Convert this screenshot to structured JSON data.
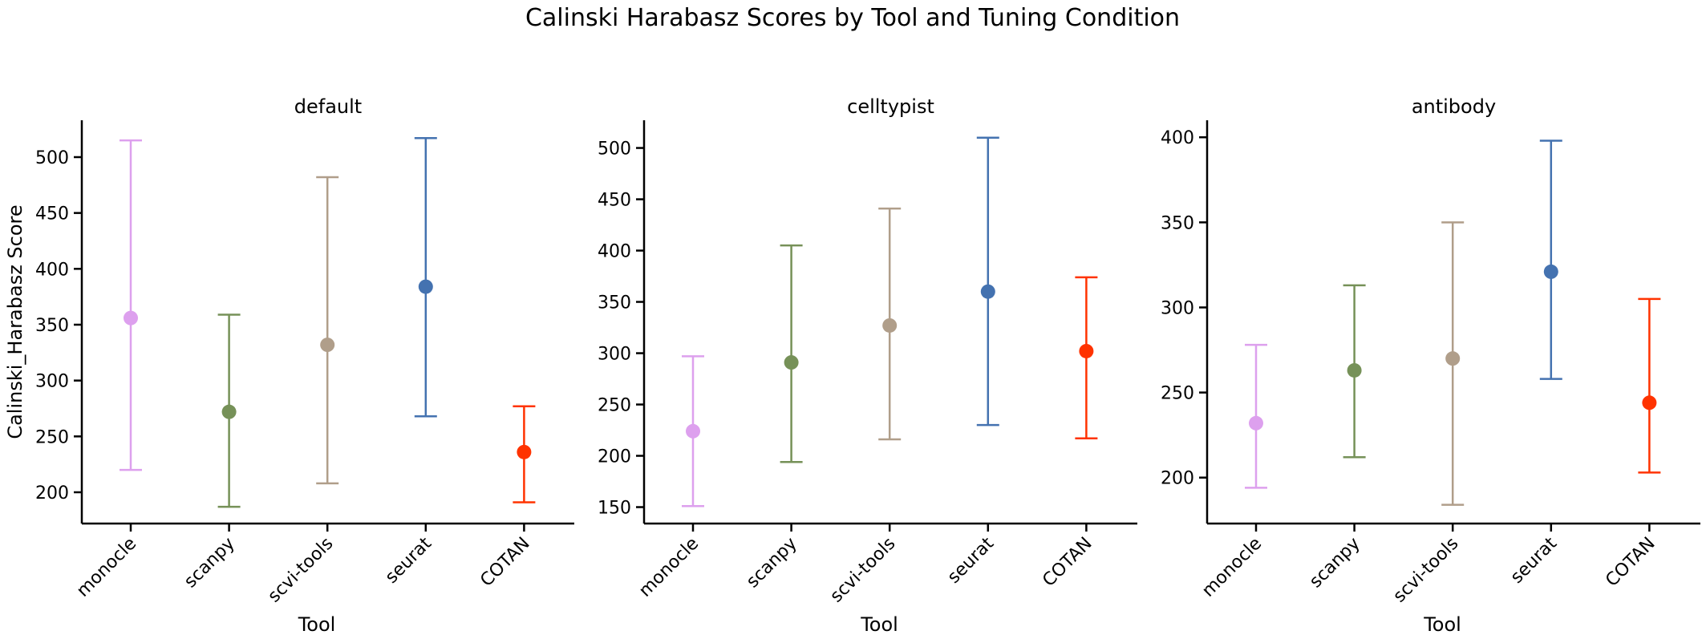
{
  "figure": {
    "title": "Calinski Harabasz Scores by Tool and Tuning Condition"
  },
  "chart_data": [
    {
      "type": "errorbar",
      "title": "default",
      "xlabel": "Tool",
      "ylabel": "Calinski_Harabasz Score",
      "categories": [
        "monocle",
        "scanpy",
        "scvi-tools",
        "seurat",
        "COTAN"
      ],
      "colors": [
        "#DDA0EE",
        "#769158",
        "#B09E8A",
        "#4472B0",
        "#FF3300"
      ],
      "mean": [
        356,
        272,
        332,
        384,
        236
      ],
      "lower": [
        220,
        187,
        208,
        268,
        191
      ],
      "upper": [
        515,
        359,
        482,
        517,
        277
      ],
      "ylim": [
        172,
        533
      ],
      "yticks": [
        200,
        250,
        300,
        350,
        400,
        450,
        500
      ]
    },
    {
      "type": "errorbar",
      "title": "celltypist",
      "xlabel": "Tool",
      "ylabel": "",
      "categories": [
        "monocle",
        "scanpy",
        "scvi-tools",
        "seurat",
        "COTAN"
      ],
      "colors": [
        "#DDA0EE",
        "#769158",
        "#B09E8A",
        "#4472B0",
        "#FF3300"
      ],
      "mean": [
        224,
        291,
        327,
        360,
        302
      ],
      "lower": [
        151,
        194,
        216,
        230,
        217
      ],
      "upper": [
        297,
        405,
        441,
        510,
        374
      ],
      "ylim": [
        134,
        527
      ],
      "yticks": [
        150,
        200,
        250,
        300,
        350,
        400,
        450,
        500
      ]
    },
    {
      "type": "errorbar",
      "title": "antibody",
      "xlabel": "Tool",
      "ylabel": "",
      "categories": [
        "monocle",
        "scanpy",
        "scvi-tools",
        "seurat",
        "COTAN"
      ],
      "colors": [
        "#DDA0EE",
        "#769158",
        "#B09E8A",
        "#4472B0",
        "#FF3300"
      ],
      "mean": [
        232,
        263,
        270,
        321,
        244
      ],
      "lower": [
        194,
        212,
        184,
        258,
        203
      ],
      "upper": [
        278,
        313,
        350,
        398,
        305
      ],
      "ylim": [
        173,
        410
      ],
      "yticks": [
        200,
        250,
        300,
        350,
        400
      ]
    }
  ]
}
